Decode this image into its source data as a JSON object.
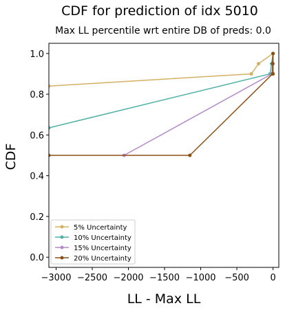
{
  "chart_data": {
    "type": "line",
    "title": "CDF for prediction of idx 5010",
    "subtitle": "Max LL percentile wrt entire DB of preds: 0.0",
    "xlabel": "LL - Max LL",
    "ylabel": "CDF",
    "xlim": [
      -3100,
      80
    ],
    "ylim": [
      -0.05,
      1.05
    ],
    "xticks": [
      -3000,
      -2500,
      -2000,
      -1500,
      -1000,
      -500,
      0
    ],
    "xtick_labels": [
      "−3000",
      "−2500",
      "−2000",
      "−1500",
      "−1000",
      "−500",
      "0"
    ],
    "yticks": [
      0.0,
      0.2,
      0.4,
      0.6,
      0.8,
      1.0
    ],
    "ytick_labels": [
      "0.0",
      "0.2",
      "0.4",
      "0.6",
      "0.8",
      "1.0"
    ],
    "legend_position": "lower-left",
    "series": [
      {
        "name": "5% Uncertainty",
        "color": "#d4b062",
        "points": [
          [
            -3100,
            0.84
          ],
          [
            -300,
            0.9
          ],
          [
            -200,
            0.95
          ],
          [
            0,
            1.0
          ],
          [
            0,
            0.9
          ],
          [
            0,
            0.95
          ]
        ]
      },
      {
        "name": "10% Uncertainty",
        "color": "#4fb0a6",
        "points": [
          [
            -3100,
            0.635
          ],
          [
            -40,
            0.9
          ],
          [
            -20,
            0.95
          ],
          [
            0,
            1.0
          ],
          [
            0,
            0.9
          ],
          [
            0,
            0.95
          ]
        ]
      },
      {
        "name": "15% Uncertainty",
        "color": "#b389c8",
        "points": [
          [
            -2060,
            0.5
          ],
          [
            -15,
            0.9
          ],
          [
            -5,
            0.95
          ],
          [
            0,
            1.0
          ],
          [
            0,
            0.9
          ],
          [
            0,
            0.95
          ]
        ]
      },
      {
        "name": "20% Uncertainty",
        "color": "#8b4f12",
        "points": [
          [
            -3100,
            0.5
          ],
          [
            -1150,
            0.5
          ],
          [
            -5,
            0.9
          ],
          [
            -5,
            0.95
          ],
          [
            0,
            1.0
          ],
          [
            0,
            0.9
          ]
        ]
      }
    ]
  }
}
